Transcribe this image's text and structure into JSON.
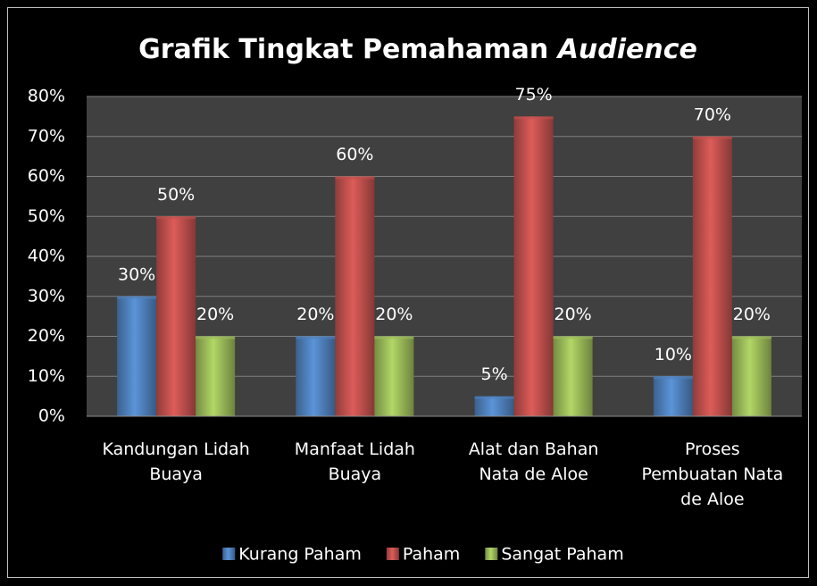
{
  "chart_data": {
    "type": "bar",
    "title": [
      "Grafik Tingkat Pemahaman",
      "Audience"
    ],
    "categories": [
      [
        "Kandungan Lidah",
        "Buaya"
      ],
      [
        "Manfaat Lidah",
        "Buaya"
      ],
      [
        "Alat dan Bahan",
        "Nata de Aloe"
      ],
      [
        "Proses",
        "Pembuatan Nata",
        "de Aloe"
      ]
    ],
    "series": [
      {
        "name": "Kurang Paham",
        "color": "#4f81bd",
        "values": [
          30,
          20,
          5,
          10
        ],
        "value_labels": [
          "30%",
          "20%",
          "5%",
          "10%"
        ]
      },
      {
        "name": "Paham",
        "color": "#c0504d",
        "values": [
          50,
          60,
          75,
          70
        ],
        "value_labels": [
          "50%",
          "60%",
          "75%",
          "70%"
        ]
      },
      {
        "name": "Sangat Paham",
        "color": "#9bbb59",
        "values": [
          20,
          20,
          20,
          20
        ],
        "value_labels": [
          "20%",
          "20%",
          "20%",
          "20%"
        ]
      }
    ],
    "ylim": [
      0,
      80
    ],
    "yticks": [
      {
        "value": 0,
        "label": "0%"
      },
      {
        "value": 10,
        "label": "10%"
      },
      {
        "value": 20,
        "label": "20%"
      },
      {
        "value": 30,
        "label": "30%"
      },
      {
        "value": 40,
        "label": "40%"
      },
      {
        "value": 50,
        "label": "50%"
      },
      {
        "value": 60,
        "label": "60%"
      },
      {
        "value": 70,
        "label": "70%"
      },
      {
        "value": 80,
        "label": "80%"
      }
    ],
    "grid": true,
    "legend": "bottom"
  }
}
